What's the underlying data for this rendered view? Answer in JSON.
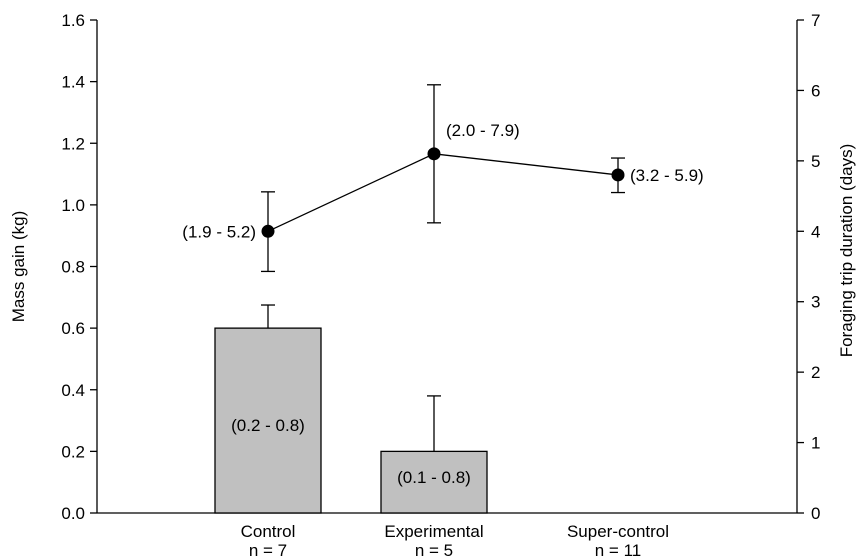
{
  "chart_data": {
    "type": "bar",
    "categories": [
      "Control",
      "Experimental",
      "Super-control"
    ],
    "category_sublabels": [
      "n = 7",
      "n = 5",
      "n = 11"
    ],
    "ylabel": "Mass gain (kg)",
    "ylim": [
      0,
      1.6
    ],
    "yticks": [
      "0.0",
      "0.2",
      "0.4",
      "0.6",
      "0.8",
      "1.0",
      "1.2",
      "1.4",
      "1.6"
    ],
    "y2label": "Foraging trip duration (days)",
    "y2lim": [
      0,
      7
    ],
    "y2ticks": [
      "0",
      "1",
      "2",
      "3",
      "4",
      "5",
      "6",
      "7"
    ],
    "bar_color": "#c0c0c0",
    "series": [
      {
        "type": "bar",
        "axis": "left",
        "values": [
          0.6,
          0.2,
          null
        ],
        "error_upper": [
          0.675,
          0.38,
          null
        ],
        "range_labels": [
          "(0.2 - 0.8)",
          "(0.1 - 0.8)",
          null
        ]
      },
      {
        "type": "line",
        "axis": "right",
        "values": [
          4.0,
          5.1,
          4.8
        ],
        "error_lower": [
          3.43,
          4.12,
          4.55
        ],
        "error_upper": [
          4.56,
          6.08,
          5.04
        ],
        "range_labels": [
          "(1.9 - 5.2)",
          "(2.0 - 7.9)",
          "(3.2 - 5.9)"
        ]
      }
    ],
    "grid": false,
    "legend": "none"
  }
}
